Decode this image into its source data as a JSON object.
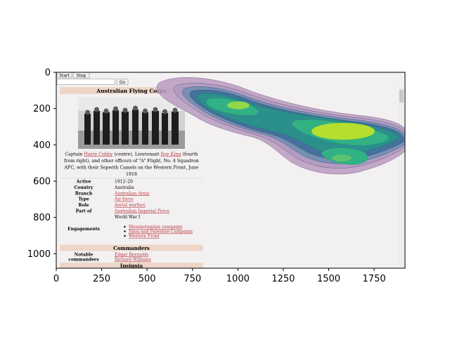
{
  "colors": {
    "page_background": "#f3f0f2",
    "sidebar_header_bg": "#edd6c8",
    "link": "#b8333a",
    "kde_outer": "#b99bc0",
    "kde_mid": "#4f7ea3",
    "kde_inner": "#2fb487",
    "kde_peak": "#b5df2f"
  },
  "axes": {
    "x_ticks": [
      "0",
      "250",
      "500",
      "750",
      "1000",
      "1250",
      "1500",
      "1750"
    ],
    "y_ticks": [
      "0",
      "200",
      "400",
      "600",
      "800",
      "1000"
    ]
  },
  "browser": {
    "start_button": "Start",
    "stop_button": "Stop",
    "go_button": "Go",
    "address_value": ""
  },
  "infobox": {
    "title": "Australian Flying Corps",
    "caption_parts": [
      {
        "text": "Captain ",
        "link": false
      },
      {
        "text": "Harry Cobby",
        "link": true
      },
      {
        "text": " (centre), Lieutenant ",
        "link": false
      },
      {
        "text": "Roy King",
        "link": true
      },
      {
        "text": " (fourth",
        "link": false
      }
    ],
    "caption_line2": "from right), and other officers of \"A\" Flight, No. 4 Squadron",
    "caption_line3": "AFC, with their Sopwith Camels on the Western Front, June",
    "caption_line4": "1918",
    "rows": [
      {
        "label": "Active",
        "value": "1912–20",
        "link": false
      },
      {
        "label": "Country",
        "value": "Australia",
        "link": false
      },
      {
        "label": "Branch",
        "value": "Australian Army",
        "link": true
      },
      {
        "label": "Type",
        "value": "Air force",
        "link": true
      },
      {
        "label": "Role",
        "value": "Aerial warfare",
        "link": true
      },
      {
        "label": "Part of",
        "value": "Australian Imperial Force",
        "link": true
      },
      {
        "label": "",
        "value": "World War I",
        "link": false
      }
    ],
    "engagements_label": "Engagements",
    "engagements": [
      "Mesopotamian campaign",
      "Sinai and Palestine Campaign",
      "Western Front"
    ],
    "commanders_header": "Commanders",
    "notable_label_1": "Notable",
    "notable_label_2": "commanders",
    "commanders": [
      "Edgar Reynolds",
      "Richard Williams"
    ],
    "insignia_header": "Insignia"
  },
  "heatmap": {
    "description_levels": 7,
    "blobs": [
      {
        "cx": 1015,
        "cy": 185,
        "label": "peak-small"
      },
      {
        "cx": 1550,
        "cy": 330,
        "label": "peak-large"
      },
      {
        "cx": 1560,
        "cy": 480,
        "label": "peak-lower"
      }
    ]
  }
}
